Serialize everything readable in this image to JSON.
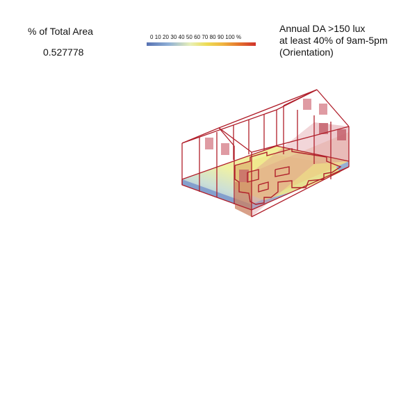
{
  "metric": {
    "label": "% of Total Area",
    "value": "0.527778"
  },
  "legend": {
    "ticks": "0 10 20 30 40 50 60 70 80 90 100 %",
    "color_low": "#5671b2",
    "color_mid": "#eddc55",
    "color_high": "#d0322b"
  },
  "title": {
    "line1": "Annual DA >150 lux",
    "line2": "at least 40% of 9am-5pm",
    "line3": "(Orientation)"
  },
  "colors": {
    "wireframe": "#b01e2a",
    "window": "#d98a93",
    "floor_blue": "#8fb0d6",
    "floor_yellow": "#eef09a"
  }
}
